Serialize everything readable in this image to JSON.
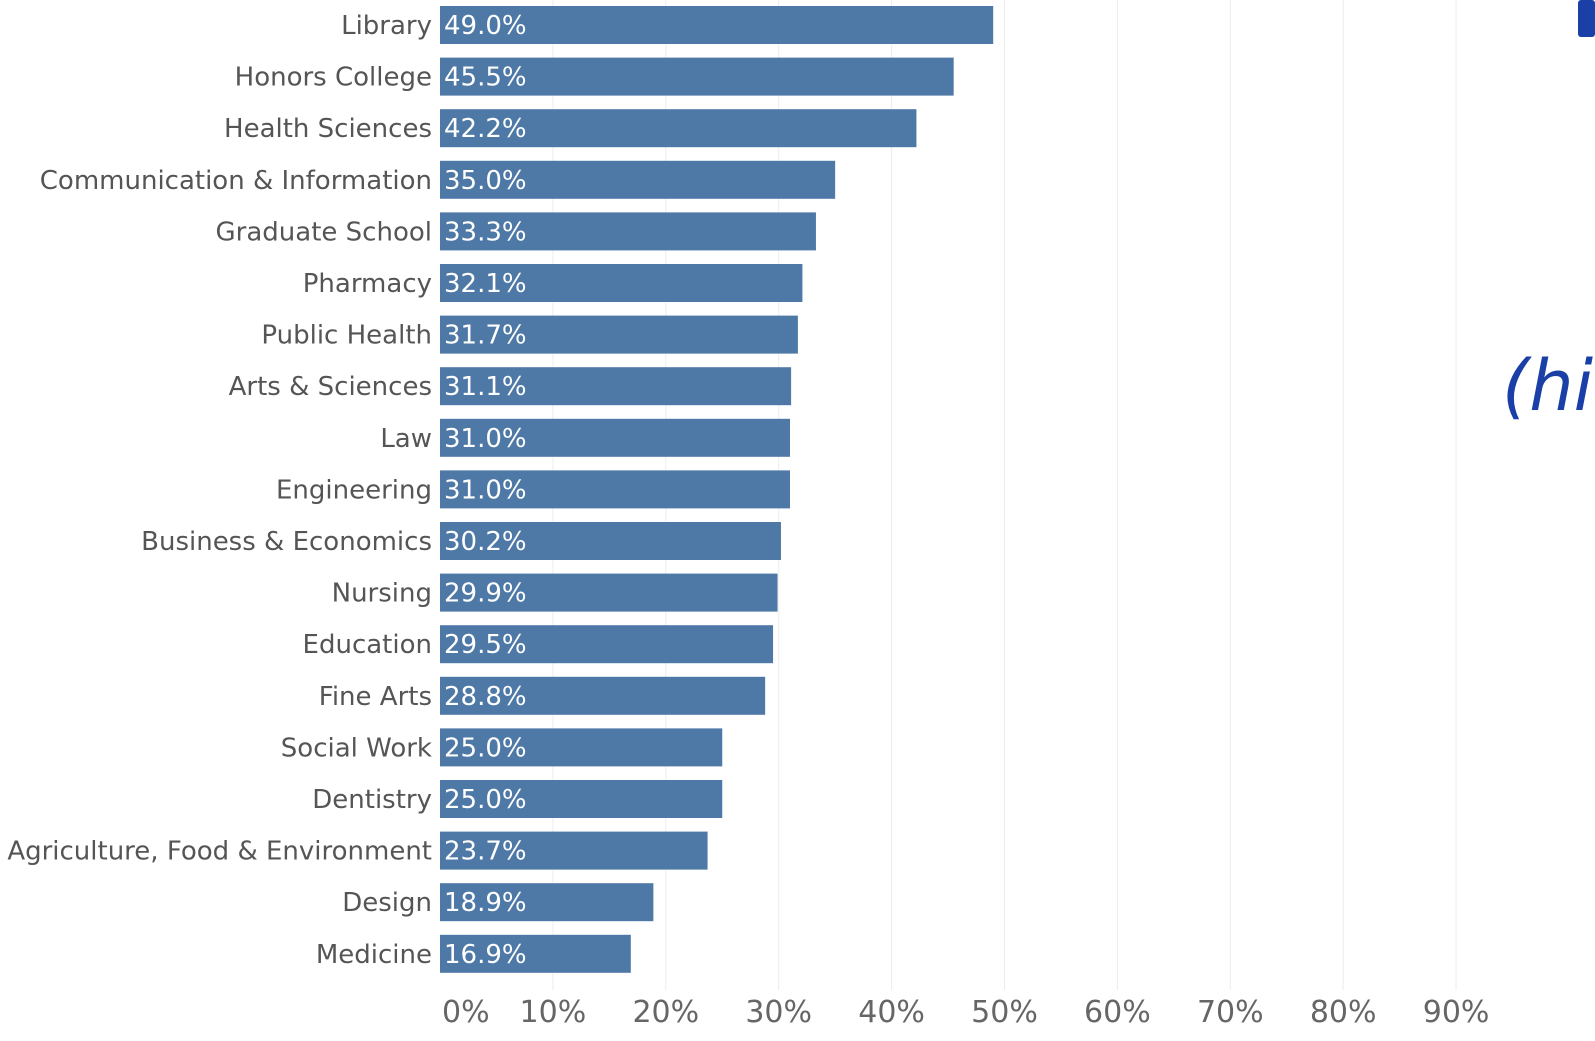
{
  "chart_data": {
    "type": "bar",
    "orientation": "horizontal",
    "categories": [
      "Library",
      "Honors College",
      "Health Sciences",
      "Communication & Information",
      "Graduate School",
      "Pharmacy",
      "Public Health",
      "Arts & Sciences",
      "Law",
      "Engineering",
      "Business & Economics",
      "Nursing",
      "Education",
      "Fine Arts",
      "Social Work",
      "Dentistry",
      "Agriculture, Food & Environment",
      "Design",
      "Medicine"
    ],
    "values": [
      49.0,
      45.5,
      42.2,
      35.0,
      33.3,
      32.1,
      31.7,
      31.1,
      31.0,
      31.0,
      30.2,
      29.9,
      29.5,
      28.8,
      25.0,
      25.0,
      23.7,
      18.9,
      16.9
    ],
    "value_labels": [
      "49.0%",
      "45.5%",
      "42.2%",
      "35.0%",
      "33.3%",
      "32.1%",
      "31.7%",
      "31.1%",
      "31.0%",
      "31.0%",
      "30.2%",
      "29.9%",
      "29.5%",
      "28.8%",
      "25.0%",
      "25.0%",
      "23.7%",
      "18.9%",
      "16.9%"
    ],
    "x_ticks": [
      0,
      10,
      20,
      30,
      40,
      50,
      60,
      70,
      80,
      90
    ],
    "x_tick_labels": [
      "0%",
      "10%",
      "20%",
      "30%",
      "40%",
      "50%",
      "60%",
      "70%",
      "80%",
      "90%"
    ],
    "xlim": [
      0,
      100
    ],
    "grid": "vertical",
    "title": "",
    "xlabel": "",
    "ylabel": ""
  },
  "colors": {
    "bar": "#4e79a7",
    "grid": "#ececec",
    "category_text": "#555555",
    "tick_text": "#666666",
    "accent": "#1a3fa6"
  },
  "side_annotation": {
    "text": "(hi"
  }
}
